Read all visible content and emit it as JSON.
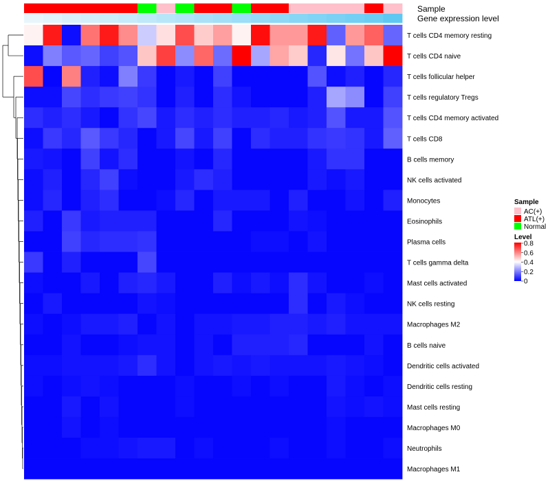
{
  "chart_data": {
    "type": "heatmap",
    "title": "",
    "annotation_tracks": {
      "sample_label": "Sample",
      "expression_label": "Gene expression level",
      "samples": [
        "ATL(+)",
        "ATL(+)",
        "ATL(+)",
        "ATL(+)",
        "ATL(+)",
        "ATL(+)",
        "Normal",
        "AC(+)",
        "Normal",
        "ATL(+)",
        "ATL(+)",
        "Normal",
        "ATL(+)",
        "ATL(+)",
        "AC(+)",
        "AC(+)",
        "AC(+)",
        "AC(+)",
        "ATL(+)",
        "AC(+)"
      ],
      "expression_levels": [
        0.0,
        0.05,
        0.1,
        0.15,
        0.2,
        0.25,
        0.3,
        0.35,
        0.4,
        0.45,
        0.5,
        0.55,
        0.6,
        0.65,
        0.7,
        0.75,
        0.8,
        0.85,
        0.9,
        1.0
      ]
    },
    "columns": 20,
    "rows": [
      "T cells CD4 memory resting",
      "T cells CD4 naive",
      "T cells follicular helper",
      "T cells regulatory  Tregs",
      "T cells CD4 memory activated",
      "T cells CD8",
      "B cells memory",
      "NK cells activated",
      "Monocytes",
      "Eosinophils",
      "Plasma cells",
      "T cells gamma delta",
      "Mast cells activated",
      "NK cells resting",
      "Macrophages M2",
      "B cells naive",
      "Dendritic cells activated",
      "Dendritic cells resting",
      "Mast cells resting",
      "Macrophages M0",
      "Neutrophils",
      "Macrophages M1"
    ],
    "values": [
      [
        0.42,
        0.76,
        0.02,
        0.62,
        0.76,
        0.58,
        0.32,
        0.45,
        0.68,
        0.48,
        0.55,
        0.42,
        0.78,
        0.56,
        0.56,
        0.76,
        0.15,
        0.56,
        0.65,
        0.16
      ],
      [
        0.02,
        0.2,
        0.14,
        0.16,
        0.1,
        0.13,
        0.49,
        0.7,
        0.22,
        0.64,
        0.17,
        0.8,
        0.26,
        0.54,
        0.48,
        0.06,
        0.44,
        0.18,
        0.49,
        0.8
      ],
      [
        0.68,
        0.01,
        0.6,
        0.05,
        0.02,
        0.2,
        0.09,
        0.01,
        0.04,
        0.01,
        0.1,
        0.01,
        0.01,
        0.01,
        0.01,
        0.13,
        0.02,
        0.05,
        0.01,
        0.06
      ],
      [
        0.02,
        0.02,
        0.11,
        0.07,
        0.09,
        0.1,
        0.08,
        0.01,
        0.05,
        0.01,
        0.07,
        0.03,
        0.01,
        0.01,
        0.01,
        0.05,
        0.26,
        0.22,
        0.01,
        0.1
      ],
      [
        0.07,
        0.05,
        0.07,
        0.04,
        0.01,
        0.08,
        0.11,
        0.04,
        0.07,
        0.05,
        0.07,
        0.05,
        0.05,
        0.06,
        0.04,
        0.05,
        0.13,
        0.04,
        0.04,
        0.13
      ],
      [
        0.02,
        0.09,
        0.06,
        0.14,
        0.09,
        0.06,
        0.01,
        0.04,
        0.11,
        0.04,
        0.1,
        0.01,
        0.07,
        0.05,
        0.05,
        0.08,
        0.09,
        0.08,
        0.04,
        0.15
      ],
      [
        0.04,
        0.03,
        0.01,
        0.1,
        0.03,
        0.07,
        0.01,
        0.01,
        0.03,
        0.01,
        0.06,
        0.01,
        0.01,
        0.01,
        0.01,
        0.04,
        0.08,
        0.08,
        0.01,
        0.01
      ],
      [
        0.02,
        0.05,
        0.01,
        0.06,
        0.1,
        0.02,
        0.01,
        0.01,
        0.04,
        0.07,
        0.05,
        0.01,
        0.01,
        0.01,
        0.01,
        0.04,
        0.02,
        0.04,
        0.01,
        0.01
      ],
      [
        0.02,
        0.06,
        0.01,
        0.05,
        0.07,
        0.01,
        0.01,
        0.02,
        0.06,
        0.01,
        0.04,
        0.04,
        0.04,
        0.01,
        0.05,
        0.01,
        0.01,
        0.03,
        0.01,
        0.05
      ],
      [
        0.05,
        0.01,
        0.09,
        0.04,
        0.05,
        0.05,
        0.05,
        0.01,
        0.01,
        0.01,
        0.06,
        0.01,
        0.01,
        0.01,
        0.03,
        0.02,
        0.01,
        0.01,
        0.01,
        0.01
      ],
      [
        0.01,
        0.01,
        0.1,
        0.06,
        0.07,
        0.07,
        0.08,
        0.01,
        0.01,
        0.01,
        0.01,
        0.01,
        0.02,
        0.02,
        0.01,
        0.03,
        0.01,
        0.01,
        0.01,
        0.01
      ],
      [
        0.09,
        0.01,
        0.05,
        0.01,
        0.01,
        0.01,
        0.11,
        0.01,
        0.01,
        0.01,
        0.01,
        0.01,
        0.01,
        0.01,
        0.01,
        0.01,
        0.01,
        0.01,
        0.01,
        0.01
      ],
      [
        0.02,
        0.01,
        0.01,
        0.04,
        0.01,
        0.05,
        0.06,
        0.04,
        0.01,
        0.01,
        0.05,
        0.02,
        0.04,
        0.02,
        0.07,
        0.03,
        0.01,
        0.01,
        0.02,
        0.01
      ],
      [
        0.01,
        0.04,
        0.01,
        0.01,
        0.01,
        0.01,
        0.03,
        0.02,
        0.01,
        0.01,
        0.01,
        0.01,
        0.01,
        0.01,
        0.07,
        0.01,
        0.04,
        0.02,
        0.01,
        0.01
      ],
      [
        0.02,
        0.01,
        0.02,
        0.04,
        0.04,
        0.05,
        0.01,
        0.03,
        0.01,
        0.03,
        0.03,
        0.04,
        0.04,
        0.05,
        0.05,
        0.04,
        0.05,
        0.03,
        0.03,
        0.03
      ],
      [
        0.01,
        0.01,
        0.03,
        0.01,
        0.01,
        0.02,
        0.03,
        0.03,
        0.01,
        0.03,
        0.01,
        0.05,
        0.05,
        0.05,
        0.06,
        0.01,
        0.01,
        0.01,
        0.03,
        0.01
      ],
      [
        0.02,
        0.02,
        0.03,
        0.03,
        0.03,
        0.04,
        0.07,
        0.03,
        0.01,
        0.03,
        0.04,
        0.03,
        0.04,
        0.03,
        0.03,
        0.03,
        0.04,
        0.03,
        0.02,
        0.01
      ],
      [
        0.02,
        0.01,
        0.02,
        0.03,
        0.02,
        0.01,
        0.01,
        0.01,
        0.02,
        0.01,
        0.01,
        0.02,
        0.01,
        0.02,
        0.01,
        0.01,
        0.04,
        0.02,
        0.01,
        0.02
      ],
      [
        0.01,
        0.01,
        0.04,
        0.01,
        0.03,
        0.01,
        0.01,
        0.01,
        0.02,
        0.01,
        0.01,
        0.01,
        0.01,
        0.01,
        0.01,
        0.01,
        0.03,
        0.02,
        0.03,
        0.02
      ],
      [
        0.01,
        0.01,
        0.03,
        0.01,
        0.02,
        0.01,
        0.01,
        0.01,
        0.01,
        0.01,
        0.01,
        0.01,
        0.01,
        0.01,
        0.01,
        0.01,
        0.02,
        0.01,
        0.01,
        0.01
      ],
      [
        0.01,
        0.01,
        0.01,
        0.02,
        0.02,
        0.03,
        0.04,
        0.04,
        0.01,
        0.02,
        0.01,
        0.01,
        0.01,
        0.02,
        0.01,
        0.01,
        0.02,
        0.01,
        0.01,
        0.02
      ],
      [
        0.01,
        0.01,
        0.01,
        0.01,
        0.01,
        0.01,
        0.01,
        0.01,
        0.01,
        0.01,
        0.01,
        0.01,
        0.01,
        0.01,
        0.01,
        0.01,
        0.01,
        0.01,
        0.01,
        0.01
      ]
    ],
    "legend": {
      "sample_title": "Sample",
      "sample_entries": [
        {
          "label": "AC(+)",
          "color": "#ffc0cb"
        },
        {
          "label": "ATL(+)",
          "color": "#ff0000"
        },
        {
          "label": "Normal",
          "color": "#00ff00"
        }
      ],
      "level_title": "Level",
      "level_ticks": [
        "0.8",
        "0.6",
        "0.4",
        "0.2",
        "0"
      ],
      "level_range": [
        0,
        0.8
      ]
    },
    "colors": {
      "low": "#0000ff",
      "mid": "#ffffff",
      "high": "#ff0000",
      "expr_low": "#e8f6fc",
      "expr_high": "#5ec8f2"
    }
  }
}
